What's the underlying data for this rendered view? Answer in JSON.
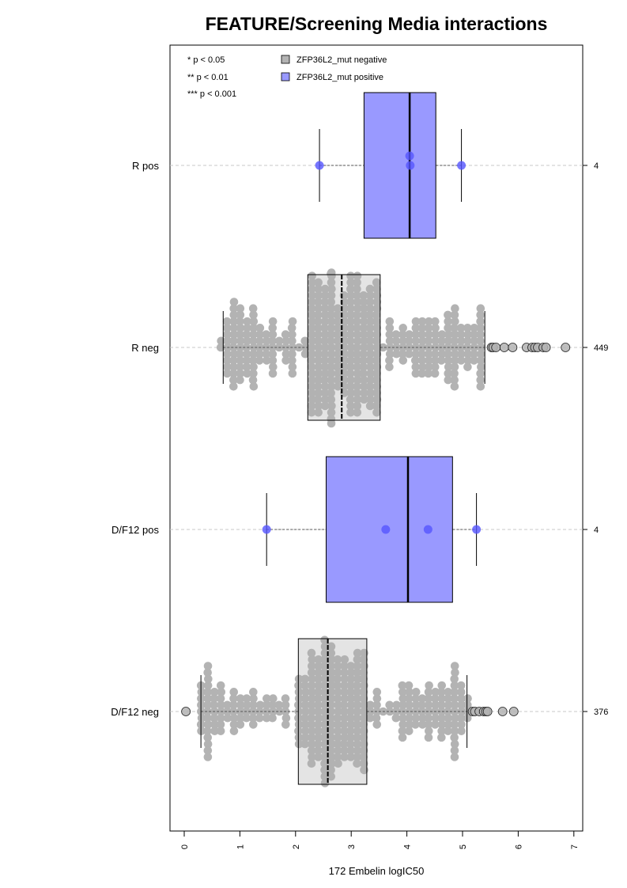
{
  "chart_data": {
    "type": "boxplot",
    "title": "FEATURE/Screening Media interactions",
    "xlabel": "172 Embelin logIC50",
    "xlim": [
      -0.2,
      7.2
    ],
    "x_ticks": [
      "0",
      "1",
      "2",
      "3",
      "4",
      "5",
      "6",
      "7"
    ],
    "significance_legend": [
      "* p < 0.05",
      "** p < 0.01",
      "*** p < 0.001"
    ],
    "legend": [
      {
        "label": "ZFP36L2_mut negative",
        "color": "#b3b3b3"
      },
      {
        "label": "ZFP36L2_mut positive",
        "color": "#9999ff"
      }
    ],
    "groups": [
      {
        "label": "R pos",
        "n": "4",
        "status": "positive",
        "box": {
          "q1": 3.23,
          "median": 4.05,
          "q3": 4.52,
          "whisker_low": 2.43,
          "whisker_high": 4.98
        },
        "points": [
          2.43,
          4.05,
          4.06,
          4.98
        ],
        "outliers": []
      },
      {
        "label": "R neg",
        "n": "449",
        "status": "negative",
        "box": {
          "q1": 2.22,
          "median": 2.83,
          "q3": 3.52,
          "whisker_low": 0.7,
          "whisker_high": 5.4
        },
        "outliers": [
          5.52,
          5.55,
          5.6,
          5.75,
          5.9,
          6.15,
          6.25,
          6.3,
          6.35,
          6.45,
          6.5,
          6.85
        ]
      },
      {
        "label": "D/F12 pos",
        "n": "4",
        "status": "positive",
        "box": {
          "q1": 2.55,
          "median": 4.02,
          "q3": 4.82,
          "whisker_low": 1.48,
          "whisker_high": 5.25
        },
        "points": [
          1.48,
          3.62,
          4.38,
          5.25
        ],
        "outliers": []
      },
      {
        "label": "D/F12 neg",
        "n": "376",
        "status": "negative",
        "box": {
          "q1": 2.05,
          "median": 2.58,
          "q3": 3.28,
          "whisker_low": 0.3,
          "whisker_high": 5.08
        },
        "outliers": [
          0.03,
          5.18,
          5.22,
          5.3,
          5.38,
          5.42,
          5.45,
          5.72,
          5.92
        ]
      }
    ]
  }
}
